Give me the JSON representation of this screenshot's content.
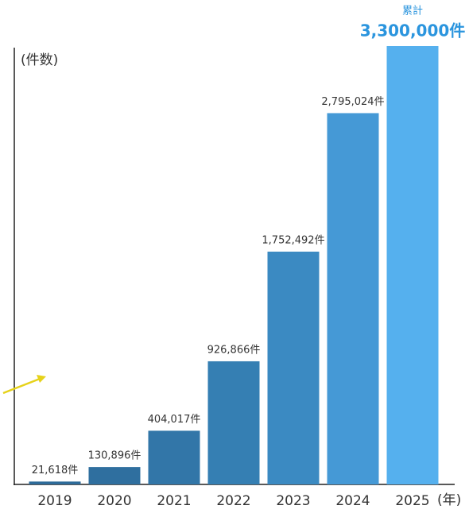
{
  "chart_data": {
    "type": "bar",
    "y_axis_label": "(件数)",
    "x_axis_label": "(年)",
    "annotation": "累計",
    "categories": [
      "2019",
      "2020",
      "2021",
      "2022",
      "2023",
      "2024",
      "2025"
    ],
    "values": [
      21618,
      130896,
      404017,
      926866,
      1752492,
      2795024,
      3300000
    ],
    "value_labels": [
      "21,618件",
      "130,896件",
      "404,017件",
      "926,866件",
      "1,752,492件",
      "2,795,024件",
      "3,300,000件"
    ],
    "colors": [
      "#2e6b99",
      "#2f6f9f",
      "#3276a8",
      "#357fb3",
      "#3b8ac2",
      "#4599d6",
      "#55b0ee"
    ],
    "ylim": [
      0,
      3300000
    ]
  }
}
